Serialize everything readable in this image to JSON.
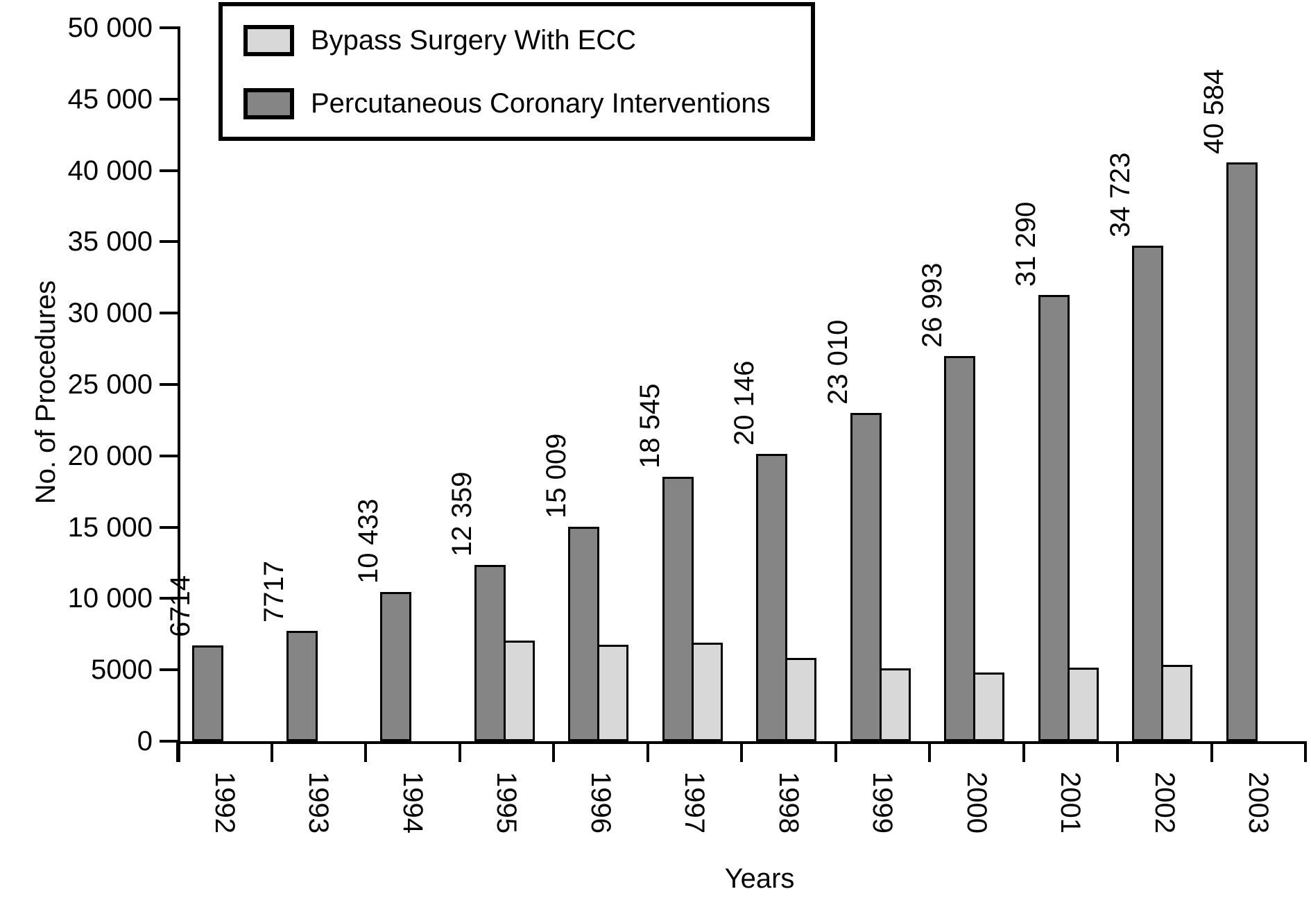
{
  "axes": {
    "y_title": "No. of Procedures",
    "x_title": "Years"
  },
  "legend": {
    "items": [
      {
        "label": "Bypass Surgery With ECC",
        "color": "#d8d8d8"
      },
      {
        "label": "Percutaneous Coronary Interventions",
        "color": "#858585"
      }
    ]
  },
  "chart_data": {
    "type": "bar",
    "xlabel": "Years",
    "ylabel": "No. of Procedures",
    "ylim": [
      0,
      50000
    ],
    "ytick_step": 5000,
    "grid": false,
    "legend_position": "top-left",
    "value_labels_rotation_deg": -90,
    "xtick_labels_rotation_deg": 90,
    "categories": [
      "1992",
      "1993",
      "1994",
      "1995",
      "1996",
      "1997",
      "1998",
      "1999",
      "2000",
      "2001",
      "2002",
      "2003"
    ],
    "yticks": [
      {
        "value": 0,
        "label": "0"
      },
      {
        "value": 5000,
        "label": "5000"
      },
      {
        "value": 10000,
        "label": "10 000"
      },
      {
        "value": 15000,
        "label": "15 000"
      },
      {
        "value": 20000,
        "label": "20 000"
      },
      {
        "value": 25000,
        "label": "25 000"
      },
      {
        "value": 30000,
        "label": "30 000"
      },
      {
        "value": 35000,
        "label": "35 000"
      },
      {
        "value": 40000,
        "label": "40 000"
      },
      {
        "value": 45000,
        "label": "45 000"
      },
      {
        "value": 50000,
        "label": "50 000"
      }
    ],
    "series": [
      {
        "name": "Percutaneous Coronary Interventions",
        "color": "#858585",
        "values": [
          6714,
          7717,
          10433,
          12359,
          15009,
          18545,
          20146,
          23010,
          26993,
          31290,
          34723,
          40584
        ],
        "value_labels": [
          "6714",
          "7717",
          "10 433",
          "12 359",
          "15 009",
          "18 545",
          "20 146",
          "23 010",
          "26 993",
          "31 290",
          "34 723",
          "40 584"
        ]
      },
      {
        "name": "Bypass Surgery With ECC",
        "color": "#d8d8d8",
        "values": [
          null,
          null,
          null,
          7065,
          6755,
          6917,
          5825,
          5106,
          4803,
          5175,
          5356,
          null
        ],
        "value_labels": [
          null,
          null,
          null,
          "7065",
          "6755",
          "6917",
          "5825",
          "5106",
          "4803",
          "5175",
          "5356",
          null
        ]
      }
    ]
  }
}
